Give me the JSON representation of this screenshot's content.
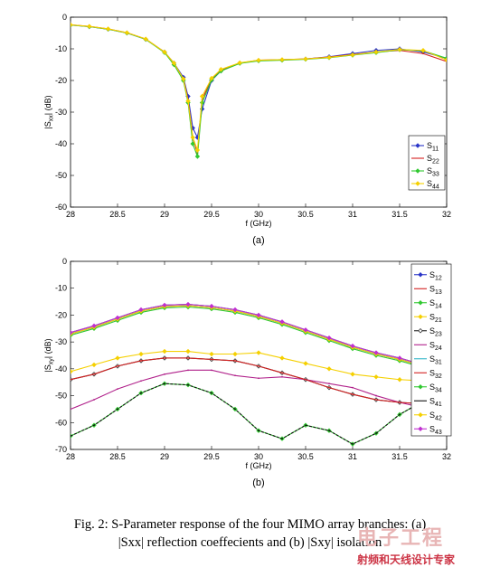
{
  "chart_data": [
    {
      "type": "line",
      "panel_label": "(a)",
      "xlabel": "f (GHz)",
      "ylabel": "|S_xx| (dB)",
      "xlim": [
        28,
        32
      ],
      "ylim": [
        -60,
        0
      ],
      "xticks": [
        "28",
        "28.5",
        "29",
        "29.5",
        "30",
        "30.5",
        "31",
        "31.5",
        "32"
      ],
      "yticks": [
        "0",
        "-10",
        "-20",
        "-30",
        "-40",
        "-50",
        "-60"
      ],
      "grid": false,
      "legend_position": "lower-right",
      "x": [
        28,
        28.2,
        28.4,
        28.6,
        28.8,
        29.0,
        29.1,
        29.2,
        29.25,
        29.3,
        29.35,
        29.4,
        29.5,
        29.6,
        29.8,
        30.0,
        30.25,
        30.5,
        30.75,
        31.0,
        31.25,
        31.5,
        31.75,
        32.0
      ],
      "series": [
        {
          "name": "S11",
          "color": "#2a35c8",
          "marker": "diamond",
          "values": [
            -2.5,
            -3,
            -3.8,
            -5,
            -7,
            -11,
            -14.5,
            -19,
            -25,
            -35,
            -38,
            -29,
            -20,
            -17,
            -14.5,
            -13.7,
            -13.5,
            -13.2,
            -12.5,
            -11.5,
            -10.5,
            -10,
            -11,
            -13
          ]
        },
        {
          "name": "S22",
          "color": "#d42020",
          "marker": "none",
          "values": [
            -2.4,
            -2.9,
            -3.7,
            -4.9,
            -6.9,
            -11,
            -14.6,
            -19.5,
            -26,
            -38,
            -43,
            -26,
            -19.5,
            -16.8,
            -14.5,
            -13.6,
            -13.4,
            -13.2,
            -12.6,
            -11.8,
            -11,
            -10.5,
            -11.5,
            -14
          ]
        },
        {
          "name": "S33",
          "color": "#30c830",
          "marker": "diamond",
          "values": [
            -2.5,
            -3,
            -3.8,
            -5,
            -7,
            -11.2,
            -15,
            -20,
            -27,
            -40,
            -44,
            -27,
            -19.8,
            -17,
            -14.6,
            -13.8,
            -13.6,
            -13.3,
            -12.8,
            -12,
            -11.2,
            -10.3,
            -10.6,
            -13
          ]
        },
        {
          "name": "S44",
          "color": "#f5d000",
          "marker": "diamond",
          "values": [
            -2.4,
            -2.9,
            -3.7,
            -4.9,
            -6.9,
            -11,
            -14.5,
            -19.5,
            -26.5,
            -38,
            -42,
            -25,
            -19.3,
            -16.5,
            -14.4,
            -13.6,
            -13.4,
            -13.2,
            -12.7,
            -11.9,
            -11,
            -10.2,
            -10.5,
            -13.5
          ]
        }
      ]
    },
    {
      "type": "line",
      "panel_label": "(b)",
      "xlabel": "f (GHz)",
      "ylabel": "|S_xy| (dB)",
      "xlim": [
        28,
        32
      ],
      "ylim": [
        -70,
        0
      ],
      "xticks": [
        "28",
        "28.5",
        "29",
        "29.5",
        "30",
        "30.5",
        "31",
        "31.5",
        "32"
      ],
      "yticks": [
        "0",
        "-10",
        "-20",
        "-30",
        "-40",
        "-50",
        "-60",
        "-70"
      ],
      "grid": false,
      "legend_position": "right",
      "x": [
        28,
        28.25,
        28.5,
        28.75,
        29.0,
        29.25,
        29.5,
        29.75,
        30.0,
        30.25,
        30.5,
        30.75,
        31.0,
        31.25,
        31.5,
        31.75,
        32.0
      ],
      "series": [
        {
          "name": "S12",
          "color": "#2a35c8",
          "marker": "diamond",
          "values": [
            -27,
            -24.5,
            -21.5,
            -18.5,
            -16.8,
            -16.5,
            -17.2,
            -18.5,
            -20.5,
            -23,
            -26,
            -29,
            -32,
            -34.5,
            -36.5,
            -39,
            -41
          ]
        },
        {
          "name": "S13",
          "color": "#d42020",
          "marker": "none",
          "values": [
            -26.5,
            -24,
            -21,
            -18,
            -16.3,
            -16,
            -16.7,
            -18,
            -20,
            -22.5,
            -25.5,
            -28.5,
            -31.5,
            -34,
            -36,
            -38.5,
            -40.5
          ]
        },
        {
          "name": "S14",
          "color": "#30c830",
          "marker": "diamond",
          "values": [
            -27.5,
            -25,
            -22,
            -19,
            -17.3,
            -17,
            -17.7,
            -19,
            -21,
            -23.5,
            -26.5,
            -29.5,
            -32.5,
            -35,
            -37,
            -39.5,
            -41.5
          ]
        },
        {
          "name": "S21",
          "color": "#f5d000",
          "marker": "diamond",
          "values": [
            -27,
            -24.5,
            -21.5,
            -18.5,
            -16.8,
            -16.5,
            -17.2,
            -18.5,
            -20.5,
            -23,
            -26,
            -29,
            -32,
            -34.5,
            -36.5,
            -39,
            -41
          ]
        },
        {
          "name": "S23",
          "color": "#222222",
          "marker": "diamond",
          "values": [
            -44,
            -42,
            -39,
            -37,
            -36,
            -36,
            -36.5,
            -37,
            -39,
            -41.5,
            -44,
            -47,
            -49.5,
            -51.5,
            -52.5,
            -53,
            -52
          ]
        },
        {
          "name": "S24",
          "color": "#b0208a",
          "marker": "none",
          "values": [
            -55,
            -51.5,
            -47.5,
            -44.5,
            -42,
            -40.5,
            -40.5,
            -42.5,
            -43.5,
            -43,
            -44,
            -45.5,
            -47,
            -50,
            -52.5,
            -54.5,
            -56
          ]
        },
        {
          "name": "S31",
          "color": "#2fb5c8",
          "marker": "none",
          "values": [
            -26.5,
            -24,
            -21,
            -18,
            -16.3,
            -16,
            -16.7,
            -18,
            -20,
            -22.5,
            -25.5,
            -28.5,
            -31.5,
            -34,
            -36,
            -38.5,
            -40.5
          ]
        },
        {
          "name": "S32",
          "color": "#d42020",
          "marker": "none",
          "values": [
            -44,
            -42,
            -39,
            -37,
            -36,
            -36,
            -36.5,
            -37,
            -39,
            -41.5,
            -44,
            -47,
            -49.5,
            -51.5,
            -52.5,
            -53,
            -52
          ]
        },
        {
          "name": "S34",
          "color": "#30c830",
          "marker": "diamond",
          "values": [
            -65,
            -61,
            -55,
            -49,
            -45.5,
            -46,
            -49,
            -55,
            -63,
            -66,
            -61,
            -63,
            -68,
            -64,
            -57,
            -52,
            -49
          ]
        },
        {
          "name": "S41",
          "color": "#111111",
          "marker": "none",
          "values": [
            -65,
            -61,
            -55,
            -49,
            -45.5,
            -46,
            -49,
            -55,
            -63,
            -66,
            -61,
            -63,
            -68,
            -64,
            -57,
            -52,
            -49
          ]
        },
        {
          "name": "S42",
          "color": "#f5d000",
          "marker": "diamond",
          "values": [
            -41,
            -38.5,
            -36,
            -34.5,
            -33.5,
            -33.5,
            -34.5,
            -34.5,
            -34,
            -36,
            -38,
            -40,
            -42,
            -43,
            -44,
            -44.5,
            -45
          ]
        },
        {
          "name": "S43",
          "color": "#c030d0",
          "marker": "diamond",
          "values": [
            -26.5,
            -24,
            -21,
            -18,
            -16.3,
            -16,
            -16.7,
            -18,
            -20,
            -22.5,
            -25.5,
            -28.5,
            -31.5,
            -34,
            -36,
            -38.5,
            -40.5
          ]
        }
      ]
    }
  ],
  "caption": {
    "line1": "Fig.  2: S-Parameter response of the four MIMO array branches: (a)",
    "line2": "|Sxx| reflection coeffecients and (b) |Sxy| isolation"
  },
  "watermark": {
    "line1": "电子工程",
    "line2": "射频和天线设计专家"
  }
}
